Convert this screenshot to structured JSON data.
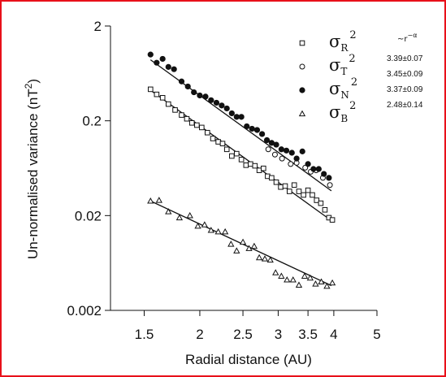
{
  "chart_data": {
    "type": "scatter",
    "xscale": "log",
    "yscale": "log",
    "xlabel": "Radial distance (AU)",
    "ylabel": "Un-normalised variance (nT",
    "ylabel_sup": "2",
    "ylabel_close": ")",
    "xlim": [
      1.26,
      5.0
    ],
    "ylim": [
      0.002,
      2
    ],
    "x_ticks": [
      {
        "v": 1.5,
        "label": "1.5"
      },
      {
        "v": 2,
        "label": "2"
      },
      {
        "v": 2.5,
        "label": "2.5"
      },
      {
        "v": 3,
        "label": "3"
      },
      {
        "v": 3.5,
        "label": "3.5"
      },
      {
        "v": 4,
        "label": "4"
      },
      {
        "v": 5,
        "label": "5"
      }
    ],
    "y_ticks": [
      {
        "v": 2,
        "label": "2"
      },
      {
        "v": 0.2,
        "label": "0.2"
      },
      {
        "v": 0.02,
        "label": "0.02"
      },
      {
        "v": 0.002,
        "label": "0.002"
      }
    ],
    "fit_header": "~r",
    "fit_header_exp": "−α",
    "series": [
      {
        "name": "σ",
        "sub": "R",
        "sup": "2",
        "marker": "square",
        "slope_label": "3.39±0.07",
        "fit": {
          "x": [
            1.55,
            3.95
          ],
          "y": [
            0.42,
            0.0177
          ]
        },
        "x": [
          1.55,
          1.6,
          1.65,
          1.7,
          1.76,
          1.82,
          1.87,
          1.92,
          1.97,
          2.02,
          2.08,
          2.14,
          2.2,
          2.25,
          2.3,
          2.36,
          2.42,
          2.48,
          2.54,
          2.6,
          2.66,
          2.72,
          2.78,
          2.84,
          2.9,
          2.97,
          3.04,
          3.11,
          3.18,
          3.26,
          3.34,
          3.42,
          3.5,
          3.58,
          3.66,
          3.74,
          3.82,
          3.9,
          3.97
        ],
        "y": [
          0.43,
          0.38,
          0.35,
          0.3,
          0.26,
          0.23,
          0.21,
          0.19,
          0.18,
          0.17,
          0.15,
          0.13,
          0.12,
          0.115,
          0.1,
          0.085,
          0.09,
          0.078,
          0.068,
          0.07,
          0.067,
          0.06,
          0.063,
          0.052,
          0.05,
          0.045,
          0.04,
          0.041,
          0.036,
          0.042,
          0.036,
          0.033,
          0.037,
          0.033,
          0.029,
          0.027,
          0.023,
          0.019,
          0.018
        ]
      },
      {
        "name": "σ",
        "sub": "T",
        "sup": "2",
        "marker": "circle-open",
        "slope_label": "3.45±0.09",
        "fit": null,
        "x": [
          2.85,
          2.95,
          3.06,
          3.2,
          3.3,
          3.45,
          3.55,
          3.65,
          3.78,
          3.92
        ],
        "y": [
          0.1,
          0.088,
          0.08,
          0.07,
          0.072,
          0.064,
          0.058,
          0.06,
          0.05,
          0.042
        ]
      },
      {
        "name": "σ",
        "sub": "N",
        "sup": "2",
        "marker": "circle-filled",
        "slope_label": "3.37±0.09",
        "fit": {
          "x": [
            1.55,
            3.95
          ],
          "y": [
            0.88,
            0.0365
          ]
        },
        "x": [
          1.55,
          1.6,
          1.65,
          1.7,
          1.75,
          1.82,
          1.88,
          1.94,
          2.0,
          2.06,
          2.12,
          2.18,
          2.24,
          2.3,
          2.36,
          2.42,
          2.48,
          2.55,
          2.62,
          2.69,
          2.76,
          2.83,
          2.9,
          2.97,
          3.05,
          3.13,
          3.22,
          3.3,
          3.4,
          3.5,
          3.6,
          3.7,
          3.8,
          3.9
        ],
        "y": [
          1.0,
          0.82,
          0.9,
          0.74,
          0.7,
          0.52,
          0.46,
          0.4,
          0.37,
          0.36,
          0.33,
          0.31,
          0.29,
          0.27,
          0.24,
          0.22,
          0.22,
          0.175,
          0.165,
          0.16,
          0.145,
          0.125,
          0.117,
          0.112,
          0.1,
          0.097,
          0.092,
          0.08,
          0.095,
          0.07,
          0.062,
          0.062,
          0.055,
          0.05
        ]
      },
      {
        "name": "σ",
        "sub": "B",
        "sup": "2",
        "marker": "triangle",
        "slope_label": "2.48±0.14",
        "fit": {
          "x": [
            1.55,
            3.95
          ],
          "y": [
            0.0285,
            0.00365
          ]
        },
        "x": [
          1.55,
          1.62,
          1.7,
          1.8,
          1.9,
          1.98,
          2.05,
          2.12,
          2.2,
          2.28,
          2.35,
          2.42,
          2.5,
          2.58,
          2.65,
          2.72,
          2.8,
          2.88,
          2.96,
          3.05,
          3.14,
          3.24,
          3.34,
          3.44,
          3.54,
          3.64,
          3.75,
          3.86,
          3.97
        ],
        "y": [
          0.0285,
          0.029,
          0.022,
          0.019,
          0.02,
          0.0155,
          0.016,
          0.014,
          0.0135,
          0.0135,
          0.01,
          0.0085,
          0.0105,
          0.009,
          0.0095,
          0.0072,
          0.007,
          0.0068,
          0.005,
          0.0046,
          0.0042,
          0.0042,
          0.0037,
          0.0046,
          0.0044,
          0.0038,
          0.004,
          0.0036,
          0.0039
        ]
      }
    ]
  }
}
